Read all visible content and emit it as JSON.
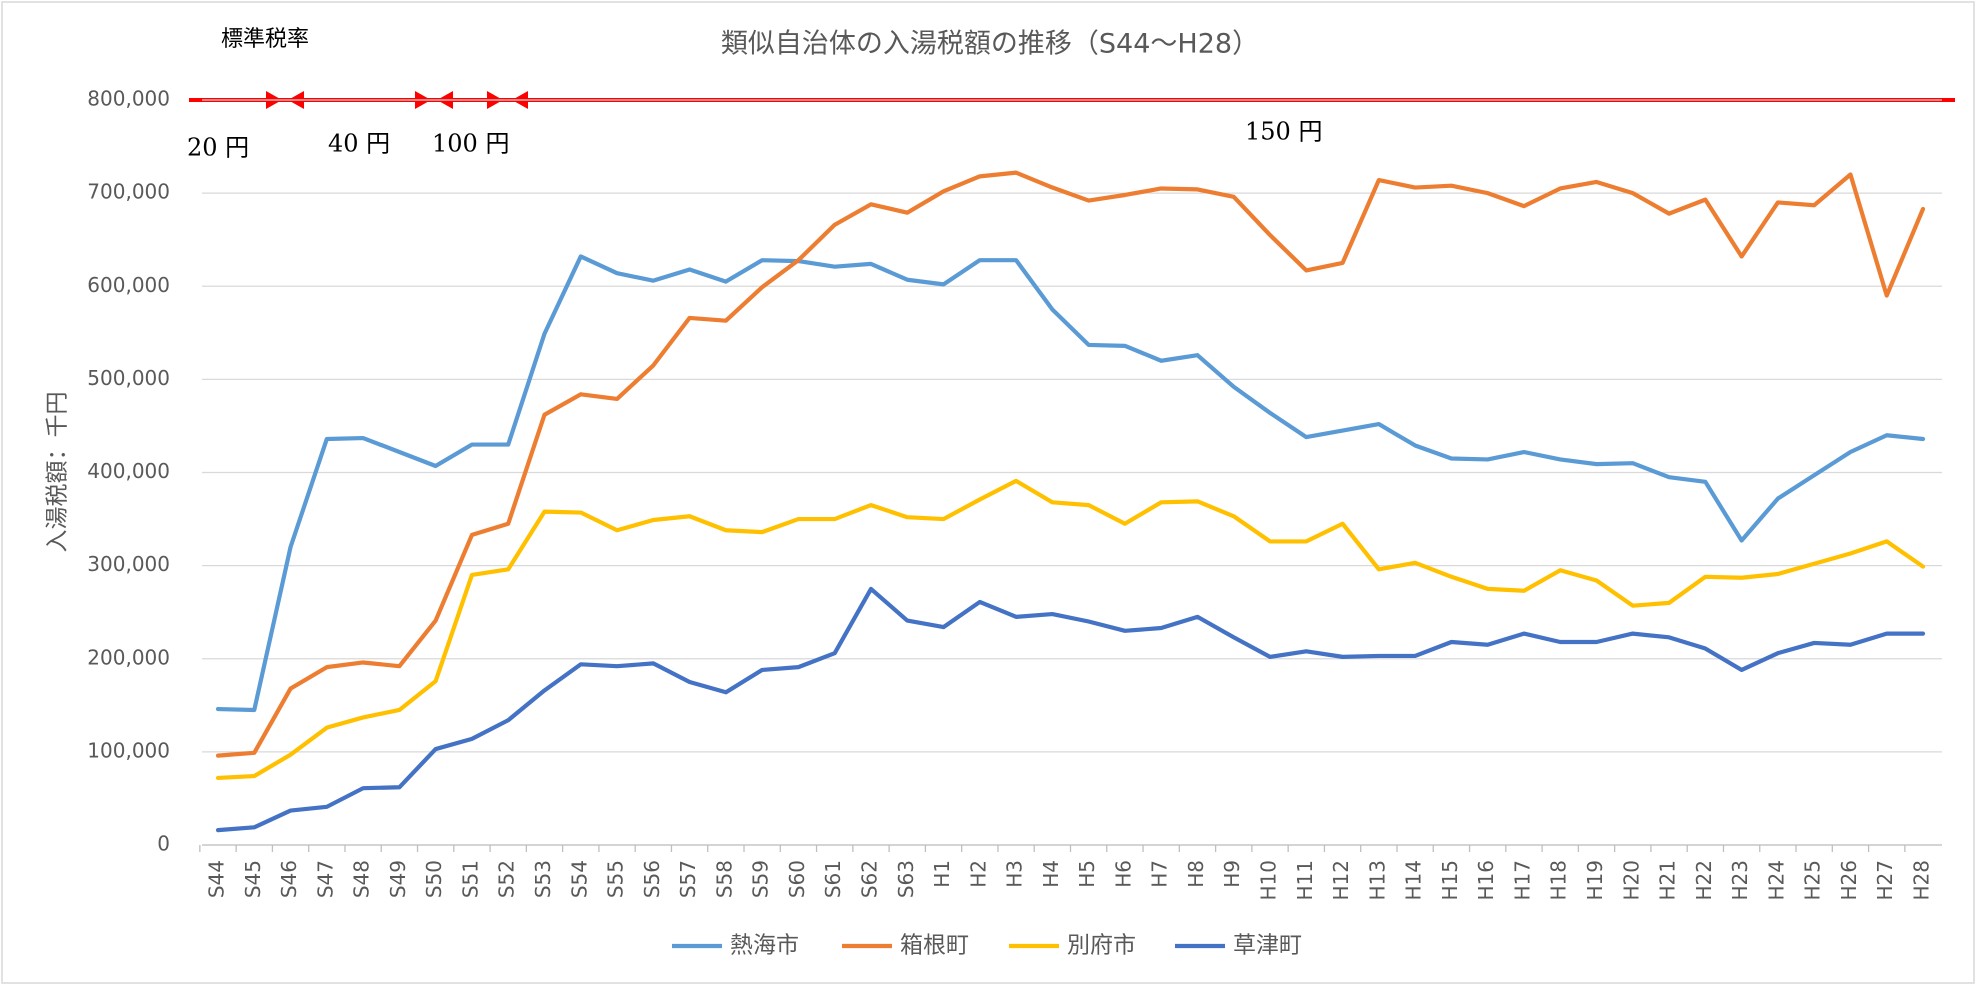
{
  "chart_data": {
    "type": "line",
    "title": "類似自治体の入湯税額の推移（S44〜H28）",
    "y_label": "入湯税額：千円",
    "annotations": {
      "header": "標準税率",
      "rates": [
        "20 円",
        "40 円",
        "100 円",
        "150 円"
      ]
    },
    "categories": [
      "S44",
      "S45",
      "S46",
      "S47",
      "S48",
      "S49",
      "S50",
      "S51",
      "S52",
      "S53",
      "S54",
      "S55",
      "S56",
      "S57",
      "S58",
      "S59",
      "S60",
      "S61",
      "S62",
      "S63",
      "H1",
      "H2",
      "H3",
      "H4",
      "H5",
      "H6",
      "H7",
      "H8",
      "H9",
      "H10",
      "H11",
      "H12",
      "H13",
      "H14",
      "H15",
      "H16",
      "H17",
      "H18",
      "H19",
      "H20",
      "H21",
      "H22",
      "H23",
      "H24",
      "H25",
      "H26",
      "H27",
      "H28"
    ],
    "series": [
      {
        "name": "熱海市",
        "color": "#5b9bd5",
        "values": [
          146000,
          145000,
          320000,
          436000,
          437000,
          422000,
          407000,
          430000,
          430000,
          549000,
          632000,
          614000,
          606000,
          618000,
          605000,
          628000,
          627000,
          621000,
          624000,
          607000,
          602000,
          628000,
          628000,
          575000,
          537000,
          536000,
          520000,
          526000,
          492000,
          464000,
          438000,
          445000,
          452000,
          429000,
          415000,
          414000,
          422000,
          414000,
          409000,
          410000,
          395000,
          390000,
          327000,
          372000,
          397000,
          422000,
          440000,
          436000
        ]
      },
      {
        "name": "箱根町",
        "color": "#ed7d31",
        "values": [
          96000,
          99000,
          168000,
          191000,
          196000,
          192000,
          241000,
          333000,
          345000,
          462000,
          484000,
          479000,
          515000,
          566000,
          563000,
          599000,
          628000,
          666000,
          688000,
          679000,
          702000,
          718000,
          722000,
          706000,
          692000,
          698000,
          705000,
          704000,
          696000,
          655000,
          617000,
          625000,
          714000,
          706000,
          708000,
          700000,
          686000,
          705000,
          712000,
          700000,
          678000,
          693000,
          632000,
          690000,
          687000,
          720000,
          590000,
          683000
        ]
      },
      {
        "name": "別府市",
        "color": "#ffc000",
        "values": [
          72000,
          74000,
          97000,
          126000,
          137000,
          145000,
          176000,
          290000,
          296000,
          358000,
          357000,
          338000,
          349000,
          353000,
          338000,
          336000,
          350000,
          350000,
          365000,
          352000,
          350000,
          371000,
          391000,
          368000,
          365000,
          345000,
          368000,
          369000,
          353000,
          326000,
          326000,
          345000,
          296000,
          303000,
          288000,
          275000,
          273000,
          295000,
          284000,
          257000,
          260000,
          288000,
          287000,
          291000,
          302000,
          313000,
          326000,
          299000
        ]
      },
      {
        "name": "草津町",
        "color": "#4472c4",
        "values": [
          16000,
          19000,
          37000,
          41000,
          61000,
          62000,
          103000,
          114000,
          134000,
          166000,
          194000,
          192000,
          195000,
          175000,
          164000,
          188000,
          191000,
          206000,
          275000,
          241000,
          234000,
          261000,
          245000,
          248000,
          240000,
          230000,
          233000,
          245000,
          223000,
          202000,
          208000,
          202000,
          203000,
          203000,
          218000,
          215000,
          227000,
          218000,
          218000,
          227000,
          223000,
          211000,
          188000,
          206000,
          217000,
          215000,
          227000,
          227000
        ]
      }
    ],
    "ylim": [
      0,
      800000
    ],
    "yticks": [
      0,
      {
        "value": 100000,
        "label": "100,000"
      },
      {
        "value": 200000,
        "label": "200,000"
      },
      {
        "value": 300000,
        "label": "300,000"
      },
      {
        "value": 400000,
        "label": "400,000"
      },
      {
        "value": 500000,
        "label": "500,000"
      },
      {
        "value": 600000,
        "label": "600,000"
      },
      {
        "value": 700000,
        "label": "700,000"
      },
      {
        "value": 800000,
        "label": "800,000"
      }
    ],
    "grid": true
  }
}
